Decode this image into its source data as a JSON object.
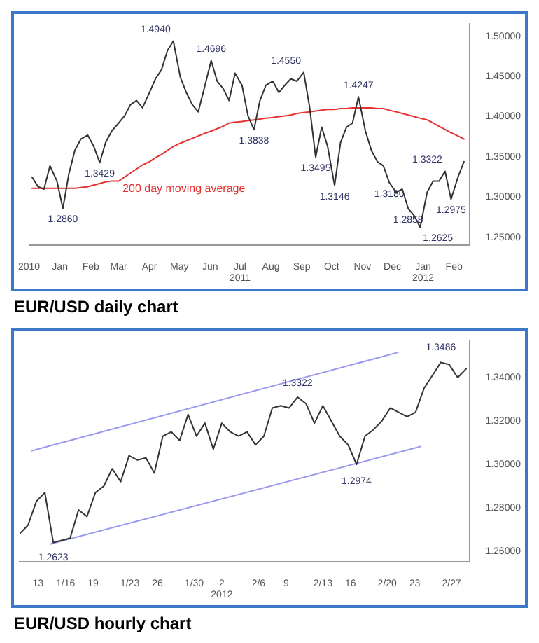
{
  "chart_data": [
    {
      "type": "line",
      "title": "EUR/USD daily chart",
      "legend": false,
      "grid": false,
      "x": [
        "2010-12-04",
        "2010-12-10",
        "2010-12-16",
        "2010-12-22",
        "2010-12-29",
        "2011-01-04",
        "2011-01-10",
        "2011-01-16",
        "2011-01-22",
        "2011-01-29",
        "2011-02-04",
        "2011-02-10",
        "2011-02-16",
        "2011-02-22",
        "2011-03-01",
        "2011-03-07",
        "2011-03-13",
        "2011-03-19",
        "2011-03-25",
        "2011-04-01",
        "2011-04-07",
        "2011-04-13",
        "2011-04-19",
        "2011-04-25",
        "2011-05-02",
        "2011-05-08",
        "2011-05-14",
        "2011-05-20",
        "2011-05-26",
        "2011-06-02",
        "2011-06-08",
        "2011-06-14",
        "2011-06-20",
        "2011-06-26",
        "2011-07-03",
        "2011-07-09",
        "2011-07-15",
        "2011-07-21",
        "2011-07-27",
        "2011-08-03",
        "2011-08-09",
        "2011-08-15",
        "2011-08-21",
        "2011-08-27",
        "2011-09-03",
        "2011-09-09",
        "2011-09-15",
        "2011-09-21",
        "2011-09-27",
        "2011-10-04",
        "2011-10-10",
        "2011-10-16",
        "2011-10-22",
        "2011-10-28",
        "2011-11-04",
        "2011-11-10",
        "2011-11-16",
        "2011-11-22",
        "2011-11-28",
        "2011-12-05",
        "2011-12-11",
        "2011-12-17",
        "2011-12-23",
        "2011-12-29",
        "2012-01-05",
        "2012-01-11",
        "2012-01-17",
        "2012-01-23",
        "2012-01-29",
        "2012-02-05",
        "2012-02-11"
      ],
      "series": [
        {
          "color": "#333333",
          "values": [
            1.325,
            1.313,
            1.31,
            1.339,
            1.32,
            1.286,
            1.329,
            1.358,
            1.372,
            1.377,
            1.363,
            1.3429,
            1.368,
            1.382,
            1.392,
            1.401,
            1.415,
            1.42,
            1.411,
            1.43,
            1.447,
            1.458,
            1.482,
            1.494,
            1.449,
            1.43,
            1.415,
            1.406,
            1.435,
            1.4696,
            1.444,
            1.435,
            1.42,
            1.454,
            1.439,
            1.401,
            1.3838,
            1.42,
            1.439,
            1.444,
            1.43,
            1.439,
            1.447,
            1.444,
            1.455,
            1.411,
            1.3495,
            1.387,
            1.363,
            1.3146,
            1.368,
            1.387,
            1.392,
            1.4247,
            1.382,
            1.358,
            1.344,
            1.339,
            1.318,
            1.306,
            1.31,
            1.2858,
            1.277,
            1.2625,
            1.306,
            1.32,
            1.32,
            1.3322,
            1.2975,
            1.325,
            1.344
          ]
        },
        {
          "name": "200 day moving average",
          "color": "#e83030",
          "values": [
            1.311,
            1.311,
            1.311,
            1.311,
            1.311,
            1.311,
            1.311,
            1.311,
            1.312,
            1.313,
            1.315,
            1.317,
            1.319,
            1.32,
            1.32,
            1.325,
            1.33,
            1.335,
            1.34,
            1.344,
            1.349,
            1.353,
            1.358,
            1.363,
            1.367,
            1.37,
            1.373,
            1.376,
            1.379,
            1.382,
            1.385,
            1.388,
            1.392,
            1.393,
            1.394,
            1.395,
            1.396,
            1.397,
            1.398,
            1.399,
            1.4,
            1.401,
            1.402,
            1.404,
            1.405,
            1.406,
            1.407,
            1.408,
            1.409,
            1.409,
            1.41,
            1.41,
            1.411,
            1.411,
            1.411,
            1.411,
            1.41,
            1.41,
            1.408,
            1.406,
            1.404,
            1.402,
            1.4,
            1.398,
            1.396,
            1.392,
            1.388,
            1.384,
            1.38,
            1.376,
            1.372
          ]
        }
      ],
      "xlim": [
        "2010-12-01",
        "2012-02-17"
      ],
      "xticks": [
        {
          "value": "2010-12-01",
          "label": "2010"
        },
        {
          "value": "2011-01-01",
          "label": "Jan"
        },
        {
          "value": "2011-02-01",
          "label": "Feb"
        },
        {
          "value": "2011-03-01",
          "label": "Mar"
        },
        {
          "value": "2011-04-01",
          "label": "Apr"
        },
        {
          "value": "2011-05-01",
          "label": "May"
        },
        {
          "value": "2011-06-01",
          "label": "Jun"
        },
        {
          "value": "2011-07-01",
          "label": "Jul\n2011"
        },
        {
          "value": "2011-08-01",
          "label": "Aug"
        },
        {
          "value": "2011-09-01",
          "label": "Sep"
        },
        {
          "value": "2011-10-01",
          "label": "Oct"
        },
        {
          "value": "2011-11-01",
          "label": "Nov"
        },
        {
          "value": "2011-12-01",
          "label": "Dec"
        },
        {
          "value": "2012-01-01",
          "label": "Jan\n2012"
        },
        {
          "value": "2012-02-01",
          "label": "Feb"
        }
      ],
      "ylim": [
        1.24,
        1.515
      ],
      "yticks": [
        {
          "value": 1.25,
          "label": "1.25000"
        },
        {
          "value": 1.3,
          "label": "1.30000"
        },
        {
          "value": 1.35,
          "label": "1.35000"
        },
        {
          "value": 1.4,
          "label": "1.40000"
        },
        {
          "value": 1.45,
          "label": "1.45000"
        },
        {
          "value": 1.5,
          "label": "1.50000"
        }
      ],
      "annotations": [
        {
          "text": "1.2860",
          "x": "2011-01-04",
          "y": 1.286
        },
        {
          "text": "1.3429",
          "x": "2011-02-10",
          "y": 1.3429
        },
        {
          "text": "1.4940",
          "x": "2011-04-25",
          "y": 1.494
        },
        {
          "text": "1.4696",
          "x": "2011-06-02",
          "y": 1.4696
        },
        {
          "text": "1.3838",
          "x": "2011-07-15",
          "y": 1.3838
        },
        {
          "text": "1.4550",
          "x": "2011-09-03",
          "y": 1.455
        },
        {
          "text": "1.3495",
          "x": "2011-09-15",
          "y": 1.3495
        },
        {
          "text": "1.3146",
          "x": "2011-10-04",
          "y": 1.3146
        },
        {
          "text": "1.4247",
          "x": "2011-10-28",
          "y": 1.4247
        },
        {
          "text": "1.3180",
          "x": "2011-11-28",
          "y": 1.318
        },
        {
          "text": "1.2858",
          "x": "2011-12-17",
          "y": 1.2858
        },
        {
          "text": "1.2625",
          "x": "2011-12-29",
          "y": 1.2625
        },
        {
          "text": "1.3322",
          "x": "2012-01-23",
          "y": 1.3322
        },
        {
          "text": "1.2975",
          "x": "2012-01-29",
          "y": 1.2975
        }
      ]
    },
    {
      "type": "line",
      "title": "EUR/USD hourly chart",
      "legend": false,
      "grid": false,
      "x": [
        "2012-01-11T00:00",
        "2012-01-11T22:00",
        "2012-01-12T20:00",
        "2012-01-13T18:00",
        "2012-01-14T16:00",
        "2012-01-15T14:00",
        "2012-01-16T12:00",
        "2012-01-17T10:00",
        "2012-01-18T08:00",
        "2012-01-19T06:00",
        "2012-01-20T04:00",
        "2012-01-21T02:00",
        "2012-01-22T00:00",
        "2012-01-22T22:00",
        "2012-01-23T20:00",
        "2012-01-24T18:00",
        "2012-01-25T16:00",
        "2012-01-26T14:00",
        "2012-01-27T12:00",
        "2012-01-28T10:00",
        "2012-01-29T08:00",
        "2012-01-30T06:00",
        "2012-01-31T04:00",
        "2012-02-01T02:00",
        "2012-02-02T00:00",
        "2012-02-02T22:00",
        "2012-02-03T20:00",
        "2012-02-04T18:00",
        "2012-02-05T16:00",
        "2012-02-06T14:00",
        "2012-02-07T12:00",
        "2012-02-08T10:00",
        "2012-02-09T08:00",
        "2012-02-10T06:00",
        "2012-02-11T04:00",
        "2012-02-12T02:00",
        "2012-02-13T00:00",
        "2012-02-13T22:00",
        "2012-02-14T20:00",
        "2012-02-15T18:00",
        "2012-02-16T16:00",
        "2012-02-17T14:00",
        "2012-02-18T12:00",
        "2012-02-19T10:00",
        "2012-02-20T08:00",
        "2012-02-21T06:00",
        "2012-02-22T04:00",
        "2012-02-23T02:00",
        "2012-02-24T00:00",
        "2012-02-24T22:00",
        "2012-02-25T20:00",
        "2012-02-26T18:00",
        "2012-02-27T16:00",
        "2012-02-28T14:00"
      ],
      "series": [
        {
          "color": "#333333",
          "values": [
            1.268,
            1.272,
            1.283,
            1.287,
            1.264,
            1.265,
            1.266,
            1.279,
            1.276,
            1.287,
            1.29,
            1.298,
            1.292,
            1.304,
            1.302,
            1.303,
            1.296,
            1.313,
            1.315,
            1.311,
            1.323,
            1.313,
            1.319,
            1.307,
            1.319,
            1.315,
            1.313,
            1.315,
            1.309,
            1.313,
            1.326,
            1.327,
            1.326,
            1.331,
            1.328,
            1.319,
            1.327,
            1.32,
            1.313,
            1.309,
            1.3,
            1.313,
            1.316,
            1.32,
            1.326,
            1.324,
            1.322,
            1.324,
            1.335,
            1.341,
            1.347,
            1.346,
            1.34,
            1.344
          ]
        },
        {
          "type": "line",
          "color": "#9999ee",
          "x": [
            "2012-01-12T08:00",
            "2012-02-21T04:00"
          ],
          "values": [
            1.3063,
            1.3516
          ]
        },
        {
          "type": "line",
          "color": "#9999ee",
          "x": [
            "2012-01-14T08:00",
            "2012-02-23T15:00"
          ],
          "values": [
            1.2633,
            1.3082
          ]
        }
      ],
      "xlim": [
        "2012-01-11T00:00",
        "2012-02-29T00:00"
      ],
      "xticks": [
        {
          "value": "2012-01-13T00:00",
          "label": "13"
        },
        {
          "value": "2012-01-16T00:00",
          "label": "1/16"
        },
        {
          "value": "2012-01-19T00:00",
          "label": "19"
        },
        {
          "value": "2012-01-23T00:00",
          "label": "1/23"
        },
        {
          "value": "2012-01-26T00:00",
          "label": "26"
        },
        {
          "value": "2012-01-30T00:00",
          "label": "1/30"
        },
        {
          "value": "2012-02-02T00:00",
          "label": "2\n2012"
        },
        {
          "value": "2012-02-06T00:00",
          "label": "2/6"
        },
        {
          "value": "2012-02-09T00:00",
          "label": "9"
        },
        {
          "value": "2012-02-13T00:00",
          "label": "2/13"
        },
        {
          "value": "2012-02-16T00:00",
          "label": "16"
        },
        {
          "value": "2012-02-20T00:00",
          "label": "2/20"
        },
        {
          "value": "2012-02-23T00:00",
          "label": "23"
        },
        {
          "value": "2012-02-27T00:00",
          "label": "2/27"
        }
      ],
      "ylim": [
        1.255,
        1.357
      ],
      "yticks": [
        {
          "value": 1.26,
          "label": "1.26000"
        },
        {
          "value": 1.28,
          "label": "1.28000"
        },
        {
          "value": 1.3,
          "label": "1.30000"
        },
        {
          "value": 1.32,
          "label": "1.32000"
        },
        {
          "value": 1.34,
          "label": "1.34000"
        }
      ],
      "annotations": [
        {
          "text": "1.2623",
          "x": "2012-01-14T16:00",
          "y": 1.2623
        },
        {
          "text": "1.3322",
          "x": "2012-02-10T06:00",
          "y": 1.3322
        },
        {
          "text": "1.2974",
          "x": "2012-02-16T16:00",
          "y": 1.2974
        },
        {
          "text": "1.3486",
          "x": "2012-02-25T20:00",
          "y": 1.3486
        }
      ]
    }
  ]
}
